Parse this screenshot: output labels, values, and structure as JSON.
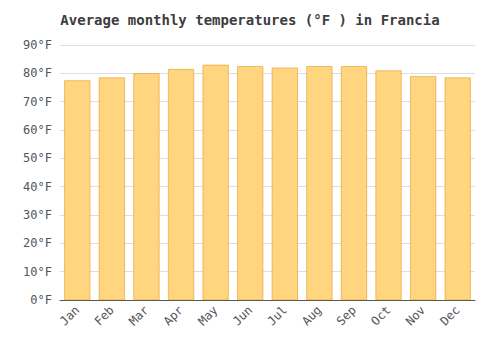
{
  "chart_data": {
    "type": "bar",
    "title": "Average monthly temperatures (°F ) in Francia",
    "categories": [
      "Jan",
      "Feb",
      "Mar",
      "Apr",
      "May",
      "Jun",
      "Jul",
      "Aug",
      "Sep",
      "Oct",
      "Nov",
      "Dec"
    ],
    "values": [
      77.5,
      78.5,
      80.0,
      81.5,
      83.0,
      82.5,
      82.0,
      82.5,
      82.5,
      81.0,
      79.0,
      78.5
    ],
    "color": "#FFD580",
    "ylim": [
      0,
      90
    ],
    "yticks": [
      {
        "value": 0,
        "label": "0°F"
      },
      {
        "value": 10,
        "label": "10°F"
      },
      {
        "value": 20,
        "label": "20°F"
      },
      {
        "value": 30,
        "label": "30°F"
      },
      {
        "value": 40,
        "label": "40°F"
      },
      {
        "value": 50,
        "label": "50°F"
      },
      {
        "value": 60,
        "label": "60°F"
      },
      {
        "value": 70,
        "label": "70°F"
      },
      {
        "value": 80,
        "label": "80°F"
      },
      {
        "value": 90,
        "label": "90°F"
      }
    ],
    "grid": true
  }
}
